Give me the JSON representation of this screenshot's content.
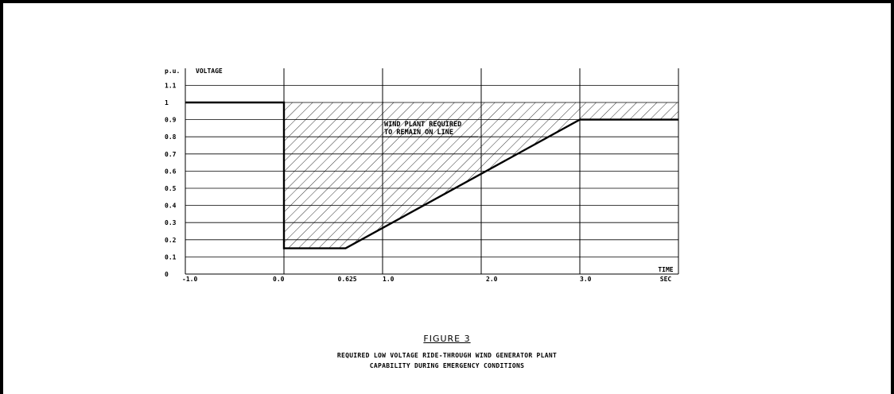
{
  "chart_data": {
    "type": "line",
    "ylabel_unit": "p.u.",
    "ylabel": "VOLTAGE",
    "xlabel": "TIME",
    "xlabel_unit": "SEC",
    "x_ticks": [
      {
        "value": -1.0,
        "label": "-1.0"
      },
      {
        "value": 0.0,
        "label": "0.0"
      },
      {
        "value": 0.625,
        "label": "0.625"
      },
      {
        "value": 1.0,
        "label": "1.0"
      },
      {
        "value": 2.0,
        "label": "2.0"
      },
      {
        "value": 3.0,
        "label": "3.0"
      }
    ],
    "y_ticks": [
      {
        "value": 0,
        "label": "0"
      },
      {
        "value": 0.1,
        "label": "0.1"
      },
      {
        "value": 0.2,
        "label": "0.2"
      },
      {
        "value": 0.3,
        "label": "0.3"
      },
      {
        "value": 0.4,
        "label": "0.4"
      },
      {
        "value": 0.5,
        "label": "0.5"
      },
      {
        "value": 0.6,
        "label": "0.6"
      },
      {
        "value": 0.7,
        "label": "0.7"
      },
      {
        "value": 0.8,
        "label": "0.8"
      },
      {
        "value": 0.9,
        "label": "0.9"
      },
      {
        "value": 1.0,
        "label": "1"
      },
      {
        "value": 1.1,
        "label": "1.1"
      }
    ],
    "xlim": [
      -1.0,
      4.0
    ],
    "ylim": [
      0,
      1.2
    ],
    "x_gridlines": [
      0.0,
      1.0,
      2.0,
      3.0
    ],
    "grid": true,
    "series": [
      {
        "x": [
          -1.0,
          0.0,
          0.0,
          0.625,
          3.0,
          4.0
        ],
        "y": [
          1.0,
          1.0,
          0.15,
          0.15,
          0.9,
          0.9
        ]
      }
    ],
    "shaded_region": {
      "description": "hatched",
      "x": [
        0.0,
        4.0,
        4.0,
        3.0,
        0.625,
        0.0
      ],
      "y": [
        1.0,
        1.0,
        0.9,
        0.9,
        0.15,
        0.15
      ]
    },
    "annotation": {
      "line1": "WIND PLANT REQUIRED",
      "line2": "TO REMAIN ON LINE",
      "x": 1.0,
      "y": 0.86
    }
  },
  "figure": {
    "title": "FIGURE 3",
    "caption_line1": "REQUIRED LOW VOLTAGE RIDE-THROUGH WIND GENERATOR PLANT",
    "caption_line2": "CAPABILITY DURING EMERGENCY CONDITIONS"
  }
}
